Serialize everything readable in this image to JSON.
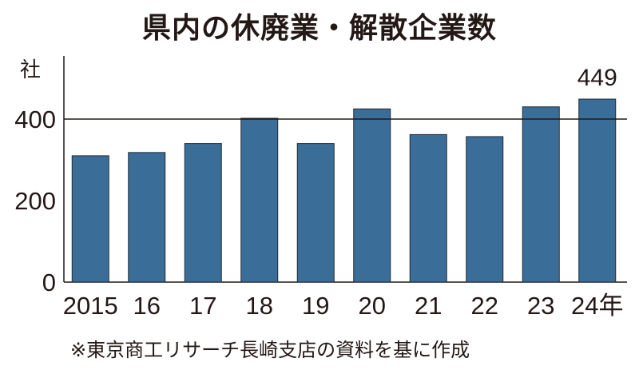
{
  "chart_data": {
    "type": "bar",
    "title": "県内の休廃業・解散企業数",
    "ylabel": "社",
    "categories": [
      "2015",
      "16",
      "17",
      "18",
      "19",
      "20",
      "21",
      "22",
      "23",
      "24年"
    ],
    "values": [
      310,
      318,
      340,
      402,
      340,
      425,
      362,
      357,
      430,
      449
    ],
    "ylim": [
      0,
      449
    ],
    "yticks": [
      0,
      200,
      400
    ],
    "reference_line": 400,
    "data_labels": [
      {
        "category": "24年",
        "text": "449"
      }
    ],
    "bar_color": "#3a6e99",
    "grid": false,
    "legend": "none"
  },
  "note": "※東京商工リサーチ長崎支店の資料を基に作成"
}
